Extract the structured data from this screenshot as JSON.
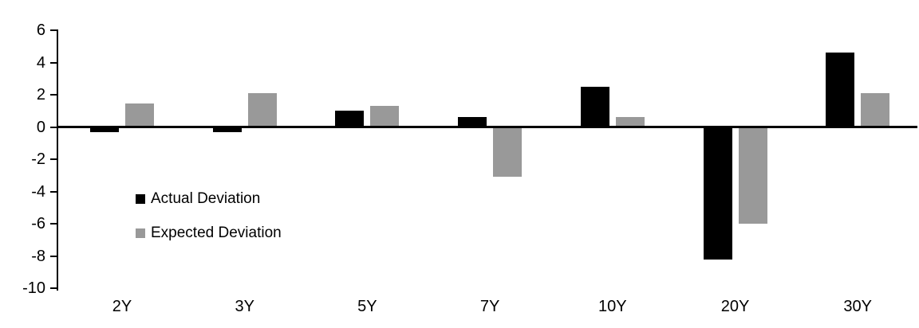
{
  "chart_data": {
    "type": "bar",
    "title": "",
    "xlabel": "",
    "ylabel": "",
    "categories": [
      "2Y",
      "3Y",
      "5Y",
      "7Y",
      "10Y",
      "20Y",
      "30Y"
    ],
    "series": [
      {
        "name": "Actual Deviation",
        "color": "#000000",
        "values": [
          -0.3,
          -0.3,
          1.0,
          0.6,
          2.5,
          -8.2,
          4.6
        ]
      },
      {
        "name": "Expected Deviation",
        "color": "#999999",
        "values": [
          1.45,
          2.1,
          1.3,
          -3.1,
          0.6,
          -6.0,
          2.1
        ]
      }
    ],
    "yticks": [
      6,
      4,
      2,
      0,
      -2,
      -4,
      -6,
      -8,
      -10
    ],
    "ylim": [
      -10,
      6
    ],
    "grid": false,
    "legend_position": "inside-left",
    "background_color": "#ffffff",
    "axis_color": "#000000"
  }
}
